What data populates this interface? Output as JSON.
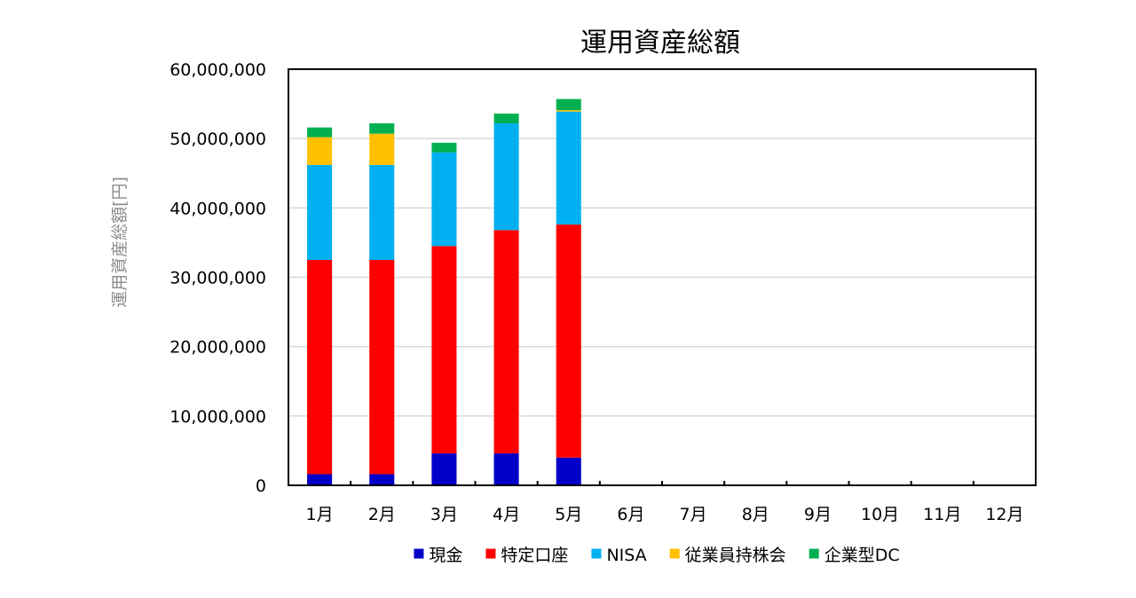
{
  "chart_data": {
    "type": "bar",
    "stacked": true,
    "title": "運用資産総額",
    "xlabel": "",
    "ylabel": "運用資産総額[円]",
    "categories": [
      "1月",
      "2月",
      "3月",
      "4月",
      "5月",
      "6月",
      "7月",
      "8月",
      "9月",
      "10月",
      "11月",
      "12月"
    ],
    "ylim": [
      0,
      60000000
    ],
    "yticks": [
      0,
      10000000,
      20000000,
      30000000,
      40000000,
      50000000,
      60000000
    ],
    "ytick_labels": [
      "0",
      "10,000,000",
      "20,000,000",
      "30,000,000",
      "40,000,000",
      "50,000,000",
      "60,000,000"
    ],
    "grid": true,
    "legend_position": "bottom",
    "series": [
      {
        "name": "現金",
        "color": "#0000c8",
        "values": [
          1600000,
          1600000,
          4600000,
          4600000,
          4000000,
          null,
          null,
          null,
          null,
          null,
          null,
          null
        ]
      },
      {
        "name": "特定口座",
        "color": "#ff0000",
        "values": [
          30900000,
          30900000,
          29900000,
          32200000,
          33600000,
          null,
          null,
          null,
          null,
          null,
          null,
          null
        ]
      },
      {
        "name": "NISA",
        "color": "#00b0f0",
        "values": [
          13700000,
          13700000,
          13500000,
          15400000,
          16300000,
          null,
          null,
          null,
          null,
          null,
          null,
          null
        ]
      },
      {
        "name": "従業員持株会",
        "color": "#ffc000",
        "values": [
          4000000,
          4500000,
          0,
          0,
          200000,
          null,
          null,
          null,
          null,
          null,
          null,
          null
        ]
      },
      {
        "name": "企業型DC",
        "color": "#00b050",
        "values": [
          1400000,
          1500000,
          1400000,
          1400000,
          1600000,
          null,
          null,
          null,
          null,
          null,
          null,
          null
        ]
      }
    ]
  }
}
